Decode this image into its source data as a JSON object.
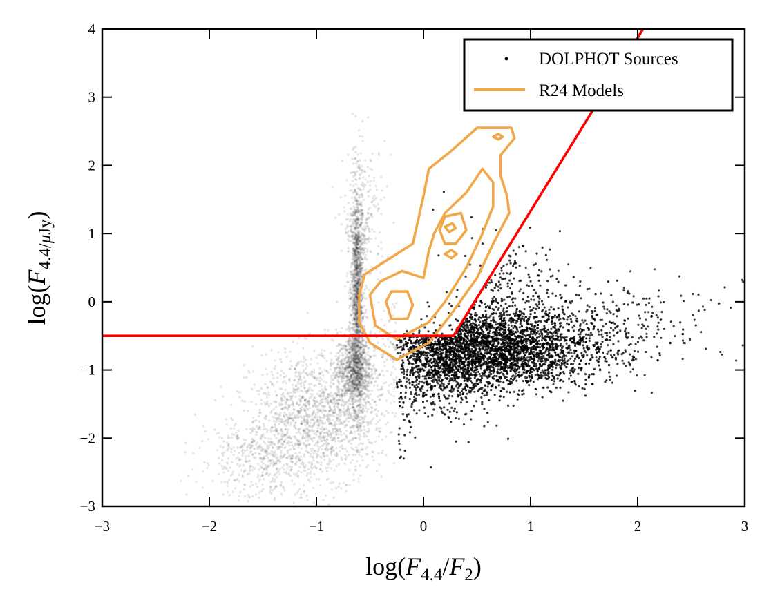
{
  "chart_data": {
    "type": "scatter",
    "title": "",
    "xlabel": {
      "prefix": "log(",
      "var1": "F",
      "sub1": "4.4",
      "sep": "/",
      "var2": "F",
      "sub2": "2",
      "suffix": ")"
    },
    "ylabel": {
      "prefix": "log(",
      "var1": "F",
      "sub1": "4.4/",
      "mu": "μ",
      "unit": "Jy",
      "suffix": ")"
    },
    "xlim": [
      -3,
      3
    ],
    "ylim": [
      -3,
      4
    ],
    "xticks": [
      -3,
      -2,
      -1,
      0,
      1,
      2,
      3
    ],
    "yticks": [
      -3,
      -2,
      -1,
      0,
      1,
      2,
      3,
      4
    ],
    "xtick_labels": [
      "−3",
      "−2",
      "−1",
      "0",
      "1",
      "2",
      "3"
    ],
    "ytick_labels": [
      "−3",
      "−2",
      "−1",
      "0",
      "1",
      "2",
      "3",
      "4"
    ],
    "grid": false,
    "legend": {
      "position": "top-right",
      "entries": [
        {
          "label": "DOLPHOT Sources",
          "marker": "dot",
          "color": "#000000"
        },
        {
          "label": "R24 Models",
          "marker": "line",
          "color": "#f0a848"
        }
      ]
    },
    "colors": {
      "sources": "#000000",
      "models": "#f0a848",
      "selection": "#ff0000"
    },
    "selection_boundary": [
      [
        -3,
        -0.5
      ],
      [
        0.28,
        -0.5
      ],
      [
        2.05,
        4.0
      ]
    ],
    "series": [
      {
        "name": "DOLPHOT Sources",
        "kind": "scatter-density",
        "faint_region": "x < -0.25",
        "clusters": [
          {
            "cx": -0.62,
            "cy": 0.1,
            "sx": 0.03,
            "sy": 0.8,
            "n": 1500
          },
          {
            "cx": -0.65,
            "cy": -1.0,
            "sx": 0.08,
            "sy": 0.28,
            "n": 900
          },
          {
            "cx": -0.95,
            "cy": -1.65,
            "sx": 0.32,
            "sy": 0.45,
            "n": 1500
          },
          {
            "cx": -1.5,
            "cy": -2.3,
            "sx": 0.3,
            "sy": 0.3,
            "n": 500
          },
          {
            "cx": -0.55,
            "cy": 1.2,
            "sx": 0.1,
            "sy": 0.55,
            "n": 250
          },
          {
            "cx": 0.7,
            "cy": -0.7,
            "sx": 0.45,
            "sy": 0.28,
            "n": 3000
          },
          {
            "cx": 0.15,
            "cy": -0.8,
            "sx": 0.25,
            "sy": 0.4,
            "n": 1100
          },
          {
            "cx": 0.6,
            "cy": 0.2,
            "sx": 0.35,
            "sy": 0.35,
            "n": 350
          },
          {
            "cx": 1.6,
            "cy": -0.4,
            "sx": 0.55,
            "sy": 0.35,
            "n": 350
          },
          {
            "cx": 0.35,
            "cy": 0.9,
            "sx": 0.2,
            "sy": 0.45,
            "n": 120
          }
        ]
      },
      {
        "name": "R24 Models",
        "kind": "contours",
        "contours": [
          [
            [
              -0.6,
              0.1
            ],
            [
              -0.55,
              0.4
            ],
            [
              -0.3,
              0.65
            ],
            [
              -0.1,
              0.85
            ],
            [
              -0.05,
              1.2
            ],
            [
              0.0,
              1.55
            ],
            [
              0.05,
              1.95
            ],
            [
              0.25,
              2.2
            ],
            [
              0.5,
              2.55
            ],
            [
              0.82,
              2.55
            ],
            [
              0.85,
              2.4
            ],
            [
              0.72,
              2.15
            ],
            [
              0.72,
              1.85
            ],
            [
              0.78,
              1.55
            ],
            [
              0.8,
              1.3
            ],
            [
              0.65,
              0.85
            ],
            [
              0.5,
              0.35
            ],
            [
              0.25,
              -0.2
            ],
            [
              0.05,
              -0.6
            ],
            [
              -0.25,
              -0.85
            ],
            [
              -0.5,
              -0.6
            ],
            [
              -0.6,
              -0.3
            ],
            [
              -0.6,
              0.1
            ]
          ],
          [
            [
              -0.5,
              0.1
            ],
            [
              -0.4,
              0.3
            ],
            [
              -0.2,
              0.45
            ],
            [
              0.0,
              0.35
            ],
            [
              0.05,
              0.75
            ],
            [
              0.1,
              1.0
            ],
            [
              0.2,
              1.3
            ],
            [
              0.4,
              1.6
            ],
            [
              0.55,
              1.95
            ],
            [
              0.65,
              1.75
            ],
            [
              0.65,
              1.4
            ],
            [
              0.55,
              1.0
            ],
            [
              0.4,
              0.5
            ],
            [
              0.2,
              0.0
            ],
            [
              0.05,
              -0.3
            ],
            [
              -0.25,
              -0.55
            ],
            [
              -0.45,
              -0.35
            ],
            [
              -0.5,
              0.1
            ]
          ],
          [
            [
              -0.35,
              0.0
            ],
            [
              -0.3,
              0.15
            ],
            [
              -0.15,
              0.15
            ],
            [
              -0.1,
              -0.05
            ],
            [
              -0.15,
              -0.25
            ],
            [
              -0.3,
              -0.25
            ],
            [
              -0.35,
              0.0
            ]
          ],
          [
            [
              0.15,
              1.05
            ],
            [
              0.2,
              1.25
            ],
            [
              0.35,
              1.3
            ],
            [
              0.4,
              1.05
            ],
            [
              0.3,
              0.85
            ],
            [
              0.2,
              0.85
            ],
            [
              0.15,
              1.05
            ]
          ],
          [
            [
              0.2,
              1.1
            ],
            [
              0.27,
              1.15
            ],
            [
              0.3,
              1.08
            ],
            [
              0.24,
              1.02
            ],
            [
              0.2,
              1.1
            ]
          ],
          [
            [
              0.2,
              0.7
            ],
            [
              0.26,
              0.76
            ],
            [
              0.31,
              0.7
            ],
            [
              0.26,
              0.64
            ],
            [
              0.2,
              0.7
            ]
          ],
          [
            [
              0.65,
              2.42
            ],
            [
              0.7,
              2.46
            ],
            [
              0.74,
              2.42
            ],
            [
              0.7,
              2.38
            ],
            [
              0.65,
              2.42
            ]
          ]
        ]
      }
    ]
  }
}
